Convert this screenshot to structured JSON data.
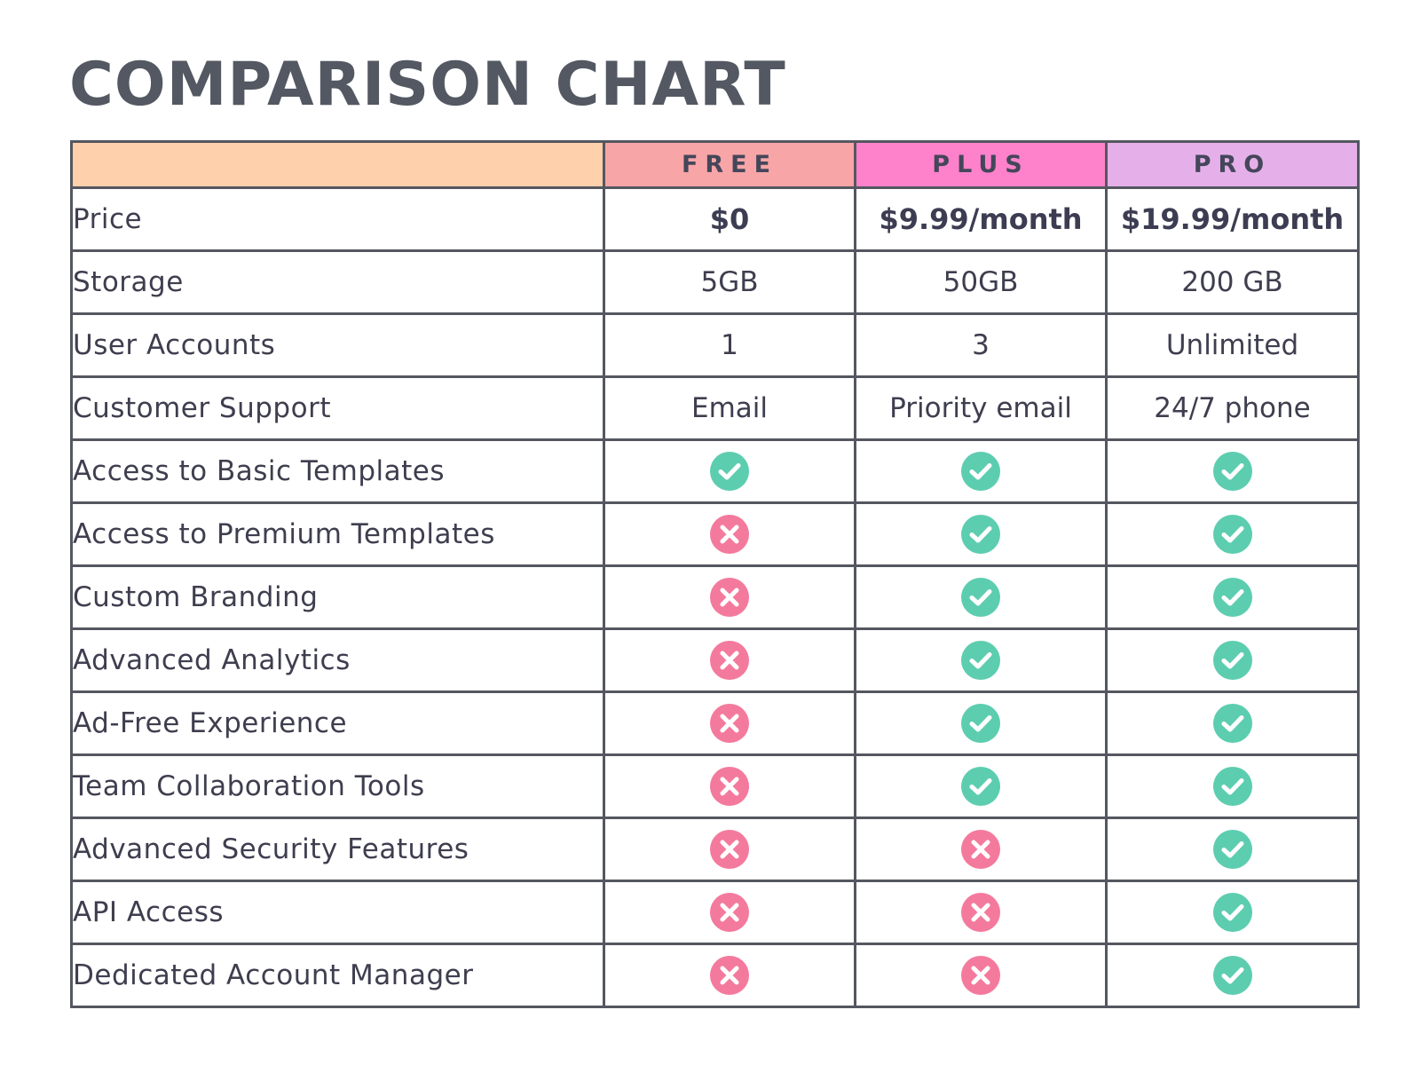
{
  "title": "COMPARISON CHART",
  "colors": {
    "header_feature": "#fed0ab",
    "header_free": "#f8a5a7",
    "header_plus": "#fe82cb",
    "header_pro": "#e5b0e9",
    "check": "#5dcdb0",
    "cross": "#f47a9d",
    "border": "#54575f",
    "title": "#535862"
  },
  "chart_data": {
    "type": "table",
    "columns": [
      "",
      "FREE",
      "PLUS",
      "PRO"
    ],
    "text_rows": [
      {
        "feature": "Price",
        "values": [
          "$0",
          "$9.99/month",
          "$19.99/month"
        ]
      },
      {
        "feature": "Storage",
        "values": [
          "5GB",
          "50GB",
          "200 GB"
        ]
      },
      {
        "feature": "User Accounts",
        "values": [
          "1",
          "3",
          "Unlimited"
        ]
      },
      {
        "feature": "Customer Support",
        "values": [
          "Email",
          "Priority email",
          "24/7 phone"
        ]
      }
    ],
    "feature_rows": [
      {
        "feature": "Access to Basic Templates",
        "values": [
          true,
          true,
          true
        ]
      },
      {
        "feature": "Access to Premium Templates",
        "values": [
          false,
          true,
          true
        ]
      },
      {
        "feature": "Custom Branding",
        "values": [
          false,
          true,
          true
        ]
      },
      {
        "feature": "Advanced Analytics",
        "values": [
          false,
          true,
          true
        ]
      },
      {
        "feature": "Ad-Free Experience",
        "values": [
          false,
          true,
          true
        ]
      },
      {
        "feature": "Team Collaboration Tools",
        "values": [
          false,
          true,
          true
        ]
      },
      {
        "feature": "Advanced Security Features",
        "values": [
          false,
          false,
          true
        ]
      },
      {
        "feature": "API Access",
        "values": [
          false,
          false,
          true
        ]
      },
      {
        "feature": "Dedicated Account Manager",
        "values": [
          false,
          false,
          true
        ]
      }
    ]
  }
}
